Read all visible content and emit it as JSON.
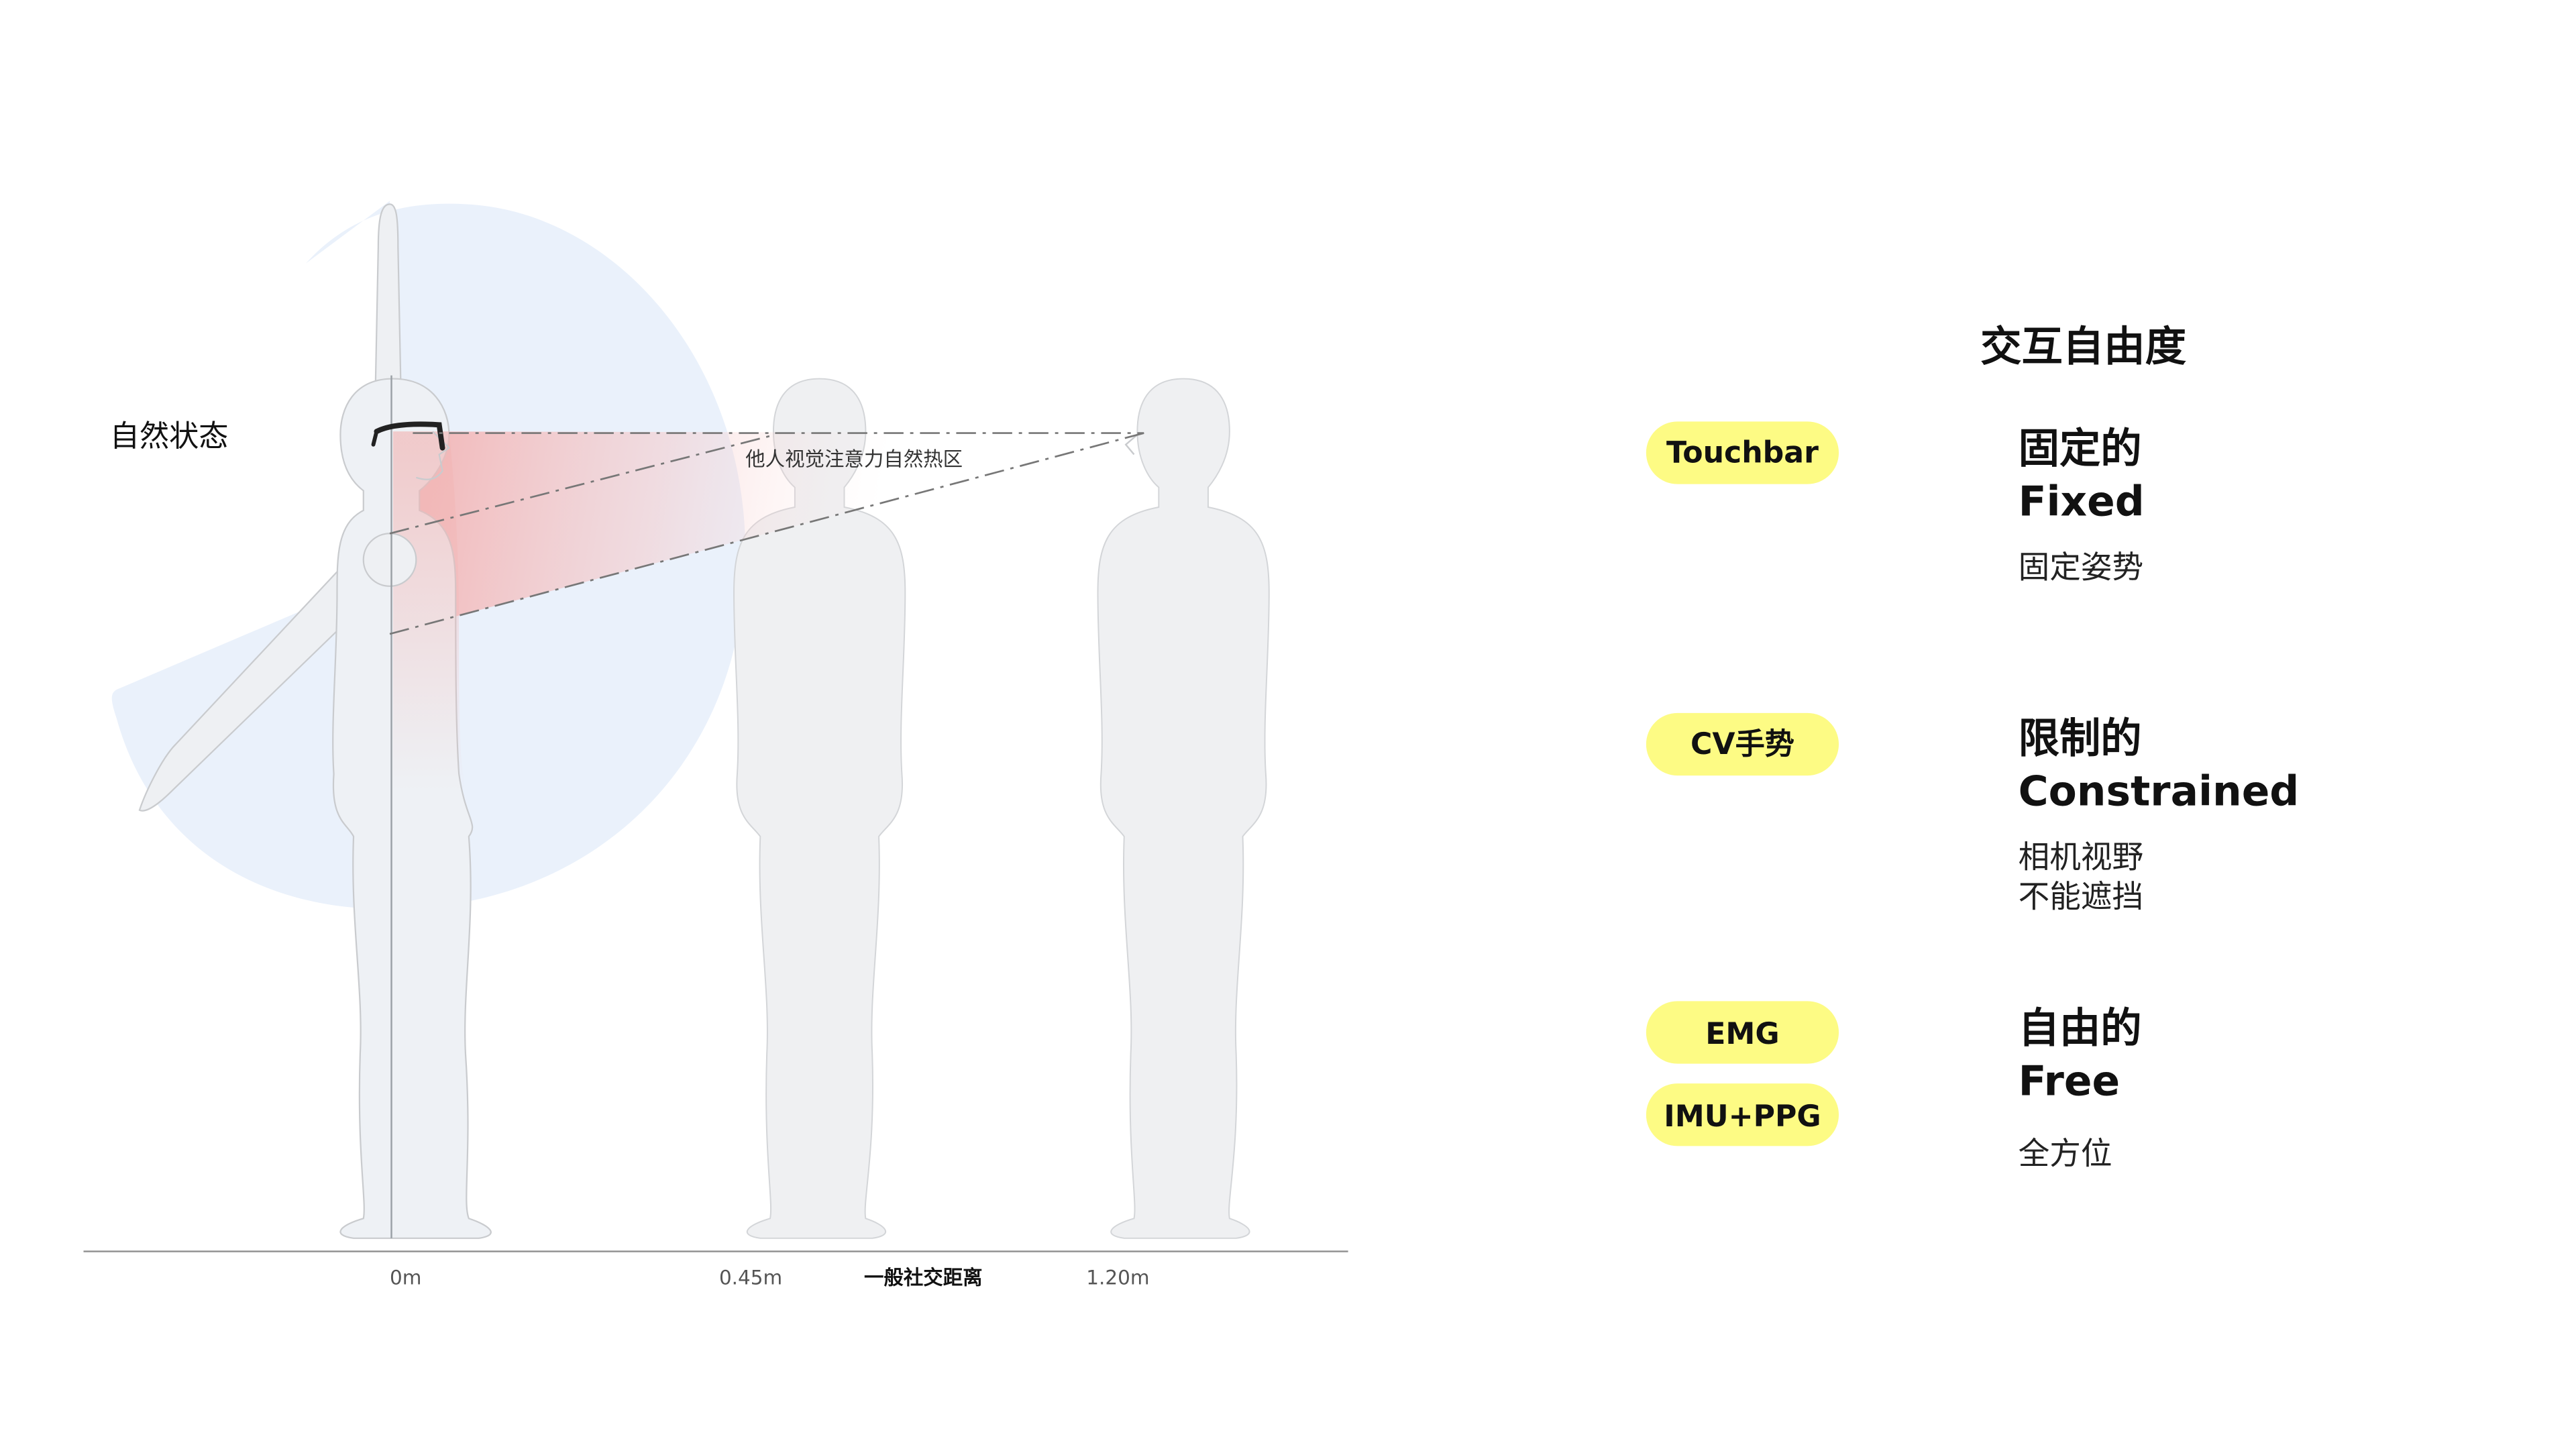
{
  "diagram": {
    "state_label": "自然状态",
    "attention_label": "他人视觉注意力自然热区",
    "distance_markers": [
      "0m",
      "0.45m",
      "1.20m"
    ],
    "distance_caption": "一般社交距离"
  },
  "panel": {
    "title": "交互自由度",
    "rows": [
      {
        "tags": [
          "Touchbar"
        ],
        "level_cn": "固定的",
        "level_en": "Fixed",
        "desc": [
          "固定姿势"
        ]
      },
      {
        "tags": [
          "CV手势"
        ],
        "level_cn": "限制的",
        "level_en": "Constrained",
        "desc": [
          "相机视野",
          "不能遮挡"
        ]
      },
      {
        "tags": [
          "EMG",
          "IMU+PPG"
        ],
        "level_cn": "自由的",
        "level_en": "Free",
        "desc": [
          "全方位"
        ]
      }
    ]
  },
  "colors": {
    "tag_fill": "#fdfb84",
    "reach_zone": "#eaf1fb",
    "heat_zone": "#f4a9a8",
    "figure_fill": "#eff0f2",
    "figure_stroke": "#c9cbce"
  }
}
